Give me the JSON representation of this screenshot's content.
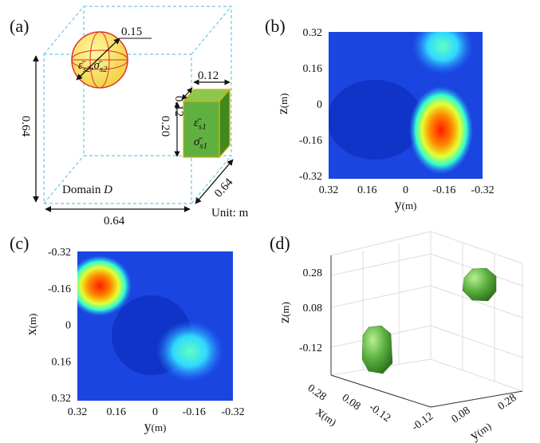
{
  "panel_a": {
    "label": "(a)",
    "sphere_radius": "0.15",
    "sphere_eps": "ε̄",
    "sphere_eps_sub": "s2",
    "sphere_sep": ",",
    "sphere_sigma": "σ̄",
    "sphere_sigma_sub": "s2",
    "box_width": "0.12",
    "box_depth": "0.12",
    "box_height": "0.20",
    "box_eps": "ε̄",
    "box_eps_sub": "s1",
    "box_sigma": "σ̄",
    "box_sigma_sub": "s1",
    "domain_height": "0.64",
    "domain_width": "0.64",
    "domain_depth": "0.64",
    "domain_text": "Domain ",
    "domain_symbol": "D",
    "unit": "Unit: m"
  },
  "panel_b": {
    "label": "(b)",
    "yticks": [
      "0.32",
      "0.16",
      "0",
      "-0.16",
      "-0.32"
    ],
    "xticks": [
      "0.32",
      "0.16",
      "0",
      "-0.16",
      "-0.32"
    ],
    "xlabel": "y",
    "xunit": "(m)",
    "ylabel": "z",
    "yunit": "(m)"
  },
  "panel_c": {
    "label": "(c)",
    "yticks": [
      "-0.32",
      "-0.16",
      "0",
      "0.16",
      "0.32"
    ],
    "xticks": [
      "0.32",
      "0.16",
      "0",
      "-0.16",
      "-0.32"
    ],
    "xlabel": "y",
    "xunit": "(m)",
    "ylabel": "x",
    "yunit": "(m)"
  },
  "panel_d": {
    "label": "(d)",
    "zticks": [
      "0.28",
      "0.08",
      "-0.12"
    ],
    "xticks": [
      "0.28",
      "0.08",
      "-0.12"
    ],
    "yticks": [
      "-0.12",
      "0.08",
      "0.28"
    ],
    "zlabel": "z",
    "zunit": "(m)",
    "xlabel": "x",
    "xunit": "(m)",
    "ylabel": "y",
    "yunit": "(m)"
  }
}
